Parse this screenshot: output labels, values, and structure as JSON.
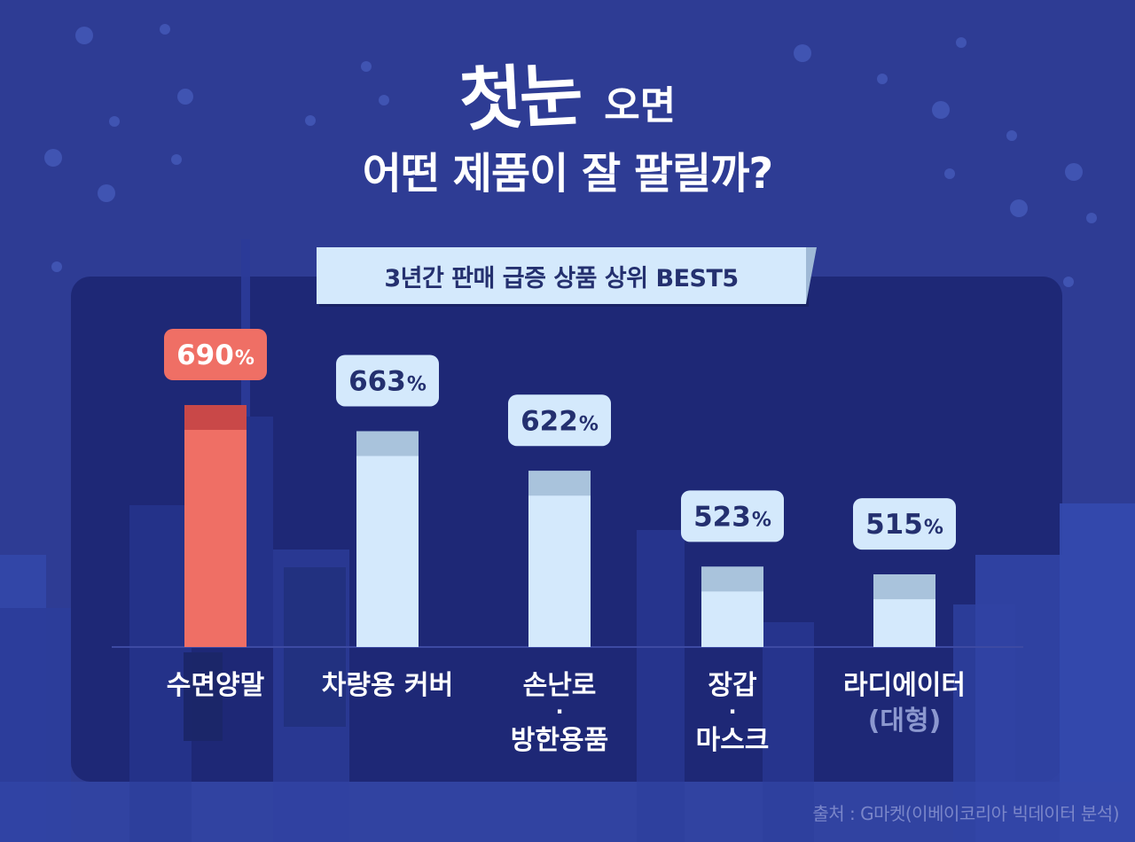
{
  "title": {
    "emphasis": "첫눈",
    "rest": "오면",
    "line2": "어떤 제품이 잘 팔릴까?"
  },
  "subtitle": "3년간 판매 급증 상품 상위 BEST5",
  "source": "출처 : G마켓(이베이코리아 빅데이터 분석)",
  "colors": {
    "background": "#2e3c94",
    "panel": "#1e2876",
    "highlight_bar": "#ef6f65",
    "highlight_label": "#ef6f65",
    "bar": "#d4e9fc",
    "label_text": "#24306f"
  },
  "chart_data": {
    "type": "bar",
    "title": "3년간 판매 급증 상품 상위 BEST5",
    "unit": "%",
    "categories": [
      [
        "수면양말"
      ],
      [
        "차량용 커버"
      ],
      [
        "손난로",
        "·",
        "방한용품"
      ],
      [
        "장갑",
        "·",
        "마스크"
      ],
      [
        "라디에이터",
        "(대형)"
      ]
    ],
    "values": [
      690,
      663,
      622,
      523,
      515
    ],
    "value_labels": [
      "690",
      "663",
      "622",
      "523",
      "515"
    ],
    "highlight_index": 0
  }
}
